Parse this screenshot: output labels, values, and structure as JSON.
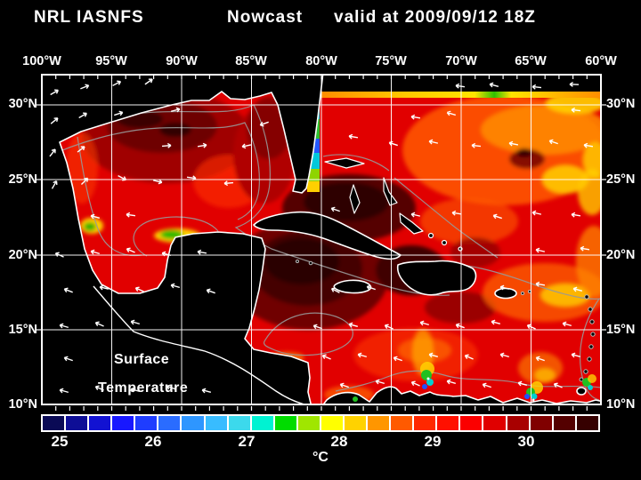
{
  "title": {
    "left": "NRL IASNFS",
    "center": "Nowcast",
    "right": "valid at 2009/09/12 18Z"
  },
  "map": {
    "overlay_line1": "Surface",
    "overlay_line2": "Temperature"
  },
  "axes": {
    "lon_labels": [
      "100°W",
      "95°W",
      "90°W",
      "85°W",
      "80°W",
      "75°W",
      "70°W",
      "65°W",
      "60°W"
    ],
    "lat_labels": [
      "30°N",
      "25°N",
      "20°N",
      "15°N",
      "10°N"
    ]
  },
  "colorbar": {
    "tick_labels": [
      "25",
      "26",
      "27",
      "28",
      "29",
      "30"
    ],
    "unit": "°C",
    "segment_colors": [
      "#0a0a55",
      "#0e0e96",
      "#1212d2",
      "#1818ff",
      "#1f3dff",
      "#2a6cff",
      "#2e96ff",
      "#38bcff",
      "#3cd9ec",
      "#00f2d2",
      "#00dc00",
      "#a0e600",
      "#ffff00",
      "#ffd200",
      "#ff9600",
      "#ff5a00",
      "#ff2800",
      "#ff1000",
      "#fb0000",
      "#e00000",
      "#a80000",
      "#800000",
      "#540000",
      "#360000"
    ]
  },
  "colors": {
    "background": "#000000",
    "text": "#ffffff",
    "water_base": "#e10000",
    "grid": "#ffffff",
    "contour": "#999999"
  }
}
